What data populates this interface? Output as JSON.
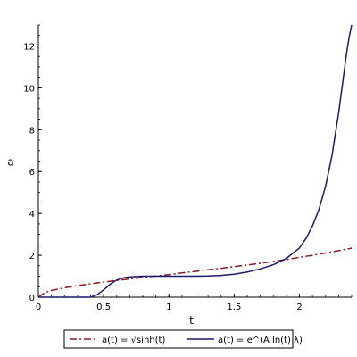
{
  "chart_data": {
    "type": "line",
    "title": "",
    "xlabel": "t",
    "ylabel": "a",
    "xlim": [
      0,
      2.4
    ],
    "ylim": [
      0,
      13
    ],
    "x_ticks": [
      0,
      0.5,
      1,
      1.5,
      2
    ],
    "x_tick_labels": [
      "0",
      "0.5",
      "1",
      "1.5",
      "2"
    ],
    "y_ticks": [
      0,
      2,
      4,
      6,
      8,
      10,
      12
    ],
    "y_tick_labels": [
      "0",
      "2",
      "4",
      "6",
      "8",
      "10",
      "12"
    ],
    "grid": false,
    "legend_position": "bottom",
    "series": [
      {
        "name": "a(t) = √sinh(t)",
        "color": "#8b1a1a",
        "style": "dash-dot",
        "x": [
          0,
          0.05,
          0.1,
          0.2,
          0.3,
          0.4,
          0.5,
          0.6,
          0.7,
          0.8,
          0.9,
          1.0,
          1.1,
          1.2,
          1.3,
          1.4,
          1.5,
          1.6,
          1.7,
          1.8,
          1.9,
          2.0,
          2.1,
          2.2,
          2.3,
          2.4
        ],
        "y": [
          0,
          0.22,
          0.32,
          0.45,
          0.55,
          0.64,
          0.72,
          0.8,
          0.87,
          0.94,
          1.01,
          1.08,
          1.16,
          1.23,
          1.31,
          1.38,
          1.46,
          1.54,
          1.62,
          1.71,
          1.8,
          1.9,
          2.0,
          2.11,
          2.22,
          2.34
        ]
      },
      {
        "name": "a(t) = e^(A ln(t) λ)",
        "color": "#1a1a6e",
        "style": "solid",
        "x": [
          0,
          0.4,
          0.45,
          0.5,
          0.55,
          0.6,
          0.65,
          0.7,
          0.8,
          0.9,
          1.0,
          1.1,
          1.2,
          1.3,
          1.4,
          1.5,
          1.6,
          1.7,
          1.8,
          1.9,
          2.0,
          2.05,
          2.1,
          2.15,
          2.2,
          2.25,
          2.3,
          2.33,
          2.36,
          2.38,
          2.4
        ],
        "y": [
          0,
          0,
          0.12,
          0.35,
          0.62,
          0.82,
          0.92,
          0.97,
          1.0,
          1.0,
          1.0,
          1.0,
          1.0,
          1.01,
          1.04,
          1.1,
          1.2,
          1.35,
          1.55,
          1.85,
          2.35,
          2.8,
          3.4,
          4.2,
          5.3,
          6.8,
          8.8,
          10.2,
          11.6,
          12.4,
          13.0
        ]
      }
    ]
  },
  "legend": {
    "item1_label": "a(t) = √sinh(t)",
    "item2_label": "a(t) = e^(A ln(t) λ)"
  }
}
